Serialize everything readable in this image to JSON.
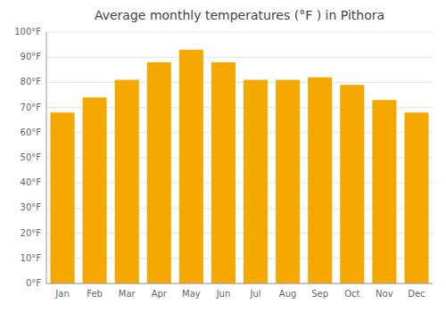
{
  "chart_data": {
    "type": "bar",
    "title": "Average monthly temperatures (°F ) in Pithora",
    "categories": [
      "Jan",
      "Feb",
      "Mar",
      "Apr",
      "May",
      "Jun",
      "Jul",
      "Aug",
      "Sep",
      "Oct",
      "Nov",
      "Dec"
    ],
    "values": [
      68,
      74,
      81,
      88,
      93,
      88,
      81,
      81,
      82,
      79,
      73,
      68
    ],
    "color": "#F5A800",
    "ylim": [
      0,
      100
    ],
    "yticks": [
      {
        "value": 0,
        "label": "0°F"
      },
      {
        "value": 10,
        "label": "10°F"
      },
      {
        "value": 20,
        "label": "20°F"
      },
      {
        "value": 30,
        "label": "30°F"
      },
      {
        "value": 40,
        "label": "40°F"
      },
      {
        "value": 50,
        "label": "50°F"
      },
      {
        "value": 60,
        "label": "60°F"
      },
      {
        "value": 70,
        "label": "70°F"
      },
      {
        "value": 80,
        "label": "80°F"
      },
      {
        "value": 90,
        "label": "90°F"
      },
      {
        "value": 100,
        "label": "100°F"
      }
    ],
    "grid": true
  }
}
